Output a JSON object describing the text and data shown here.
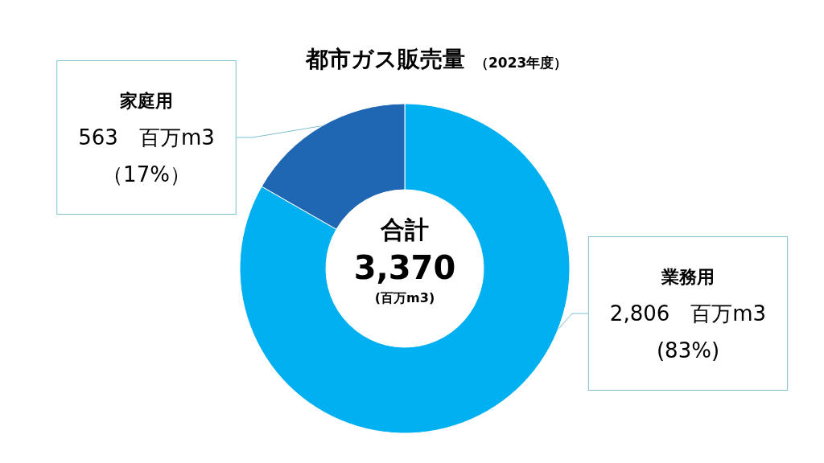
{
  "chart_data": {
    "type": "donut",
    "title": "都市ガス販売量",
    "subtitle": "（2023年度）",
    "categories": [
      "業務用",
      "家庭用"
    ],
    "values": [
      2806,
      563
    ],
    "colors": [
      "#00b0f0",
      "#1f66b3"
    ],
    "value_labels": [
      "2,806　百万m3\n(83%)",
      "563　百万m3\n（17%）"
    ],
    "annotations": [
      "合計",
      "3,370",
      "(百万m3)"
    ]
  }
}
